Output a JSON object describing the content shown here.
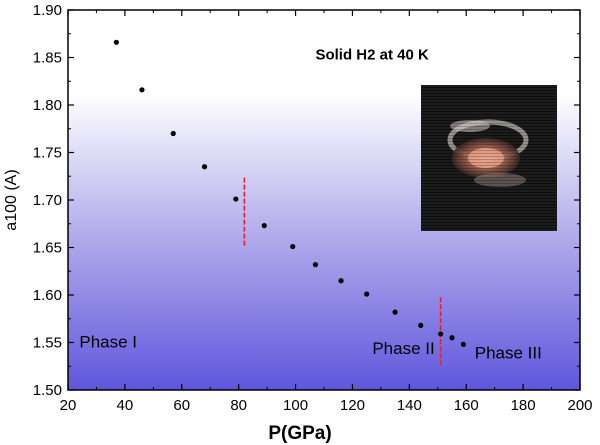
{
  "chart_data": {
    "type": "scatter",
    "title": "",
    "xlabel": "P(GPa)",
    "ylabel": "a100 (A)",
    "xlim": [
      20,
      200
    ],
    "ylim": [
      1.5,
      1.9
    ],
    "xticks": [
      20,
      40,
      60,
      80,
      100,
      120,
      140,
      160,
      180,
      200
    ],
    "yticks": [
      1.5,
      1.55,
      1.6,
      1.65,
      1.7,
      1.75,
      1.8,
      1.85,
      1.9
    ],
    "xtick_labels": [
      "20",
      "40",
      "60",
      "80",
      "100",
      "120",
      "140",
      "160",
      "180",
      "200"
    ],
    "ytick_labels": [
      "1.50",
      "1.55",
      "1.60",
      "1.65",
      "1.70",
      "1.75",
      "1.80",
      "1.85",
      "1.90"
    ],
    "grid": false,
    "series": [
      {
        "x": [
          37,
          46,
          57,
          68,
          79,
          89,
          99,
          107,
          116,
          125,
          135,
          144,
          151,
          155,
          159
        ],
        "y": [
          1.866,
          1.816,
          1.77,
          1.735,
          1.701,
          1.673,
          1.651,
          1.632,
          1.615,
          1.601,
          1.582,
          1.568,
          1.559,
          1.555,
          1.548
        ],
        "color": "#000000"
      }
    ],
    "boundaries": [
      {
        "x": 82,
        "y_range": [
          1.652,
          1.724
        ],
        "color": "#e8202a",
        "style": "dashed"
      },
      {
        "x": 151,
        "y_range": [
          1.526,
          1.6
        ],
        "color": "#e8202a",
        "style": "dashed"
      }
    ],
    "annotations": [
      {
        "text": "Phase I",
        "x": 24,
        "y": 1.545
      },
      {
        "text": "Phase II",
        "x": 127,
        "y": 1.538
      },
      {
        "text": "Phase III",
        "x": 163,
        "y": 1.533
      },
      {
        "text": "Solid H2 at 40 K",
        "x": 107,
        "y": 1.848,
        "bold": true
      }
    ],
    "inset_image": {
      "description_icon": "diffraction-pattern-icon"
    },
    "background_gradient": [
      "#ffffff",
      "#6a62dc"
    ]
  }
}
